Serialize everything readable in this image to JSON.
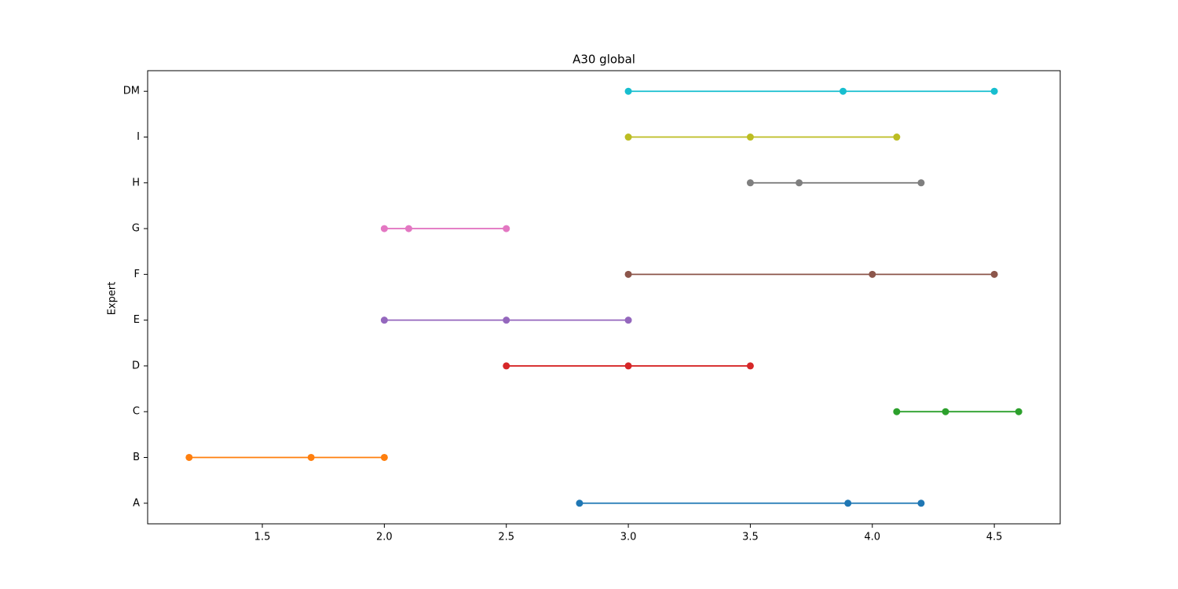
{
  "chart_data": {
    "type": "line",
    "title": "A30 global",
    "ylabel": "Expert",
    "categories": [
      "A",
      "B",
      "C",
      "D",
      "E",
      "F",
      "G",
      "H",
      "I",
      "DM"
    ],
    "values": [
      [
        2.8,
        3.9,
        4.2
      ],
      [
        1.2,
        1.7,
        2.0
      ],
      [
        4.1,
        4.3,
        4.6
      ],
      [
        2.5,
        3.0,
        3.5
      ],
      [
        2.0,
        2.5,
        3.0
      ],
      [
        3.0,
        4.0,
        4.5
      ],
      [
        2.0,
        2.1,
        2.5
      ],
      [
        3.5,
        3.7,
        4.2
      ],
      [
        3.0,
        3.5,
        4.1
      ],
      [
        3.0,
        3.88,
        4.5
      ]
    ],
    "colors": [
      "#1f77b4",
      "#ff7f0e",
      "#2ca02c",
      "#d62728",
      "#9467bd",
      "#8c564b",
      "#e377c2",
      "#7f7f7f",
      "#bcbd22",
      "#17becf"
    ],
    "xlim": [
      1.03,
      4.77
    ],
    "xticks": [
      1.5,
      {
        "value": 2.0,
        "label": "2.0"
      },
      2.5,
      {
        "value": 3.0,
        "label": "3.0"
      },
      3.5,
      {
        "value": 4.0,
        "label": "4.0"
      },
      4.5
    ]
  }
}
